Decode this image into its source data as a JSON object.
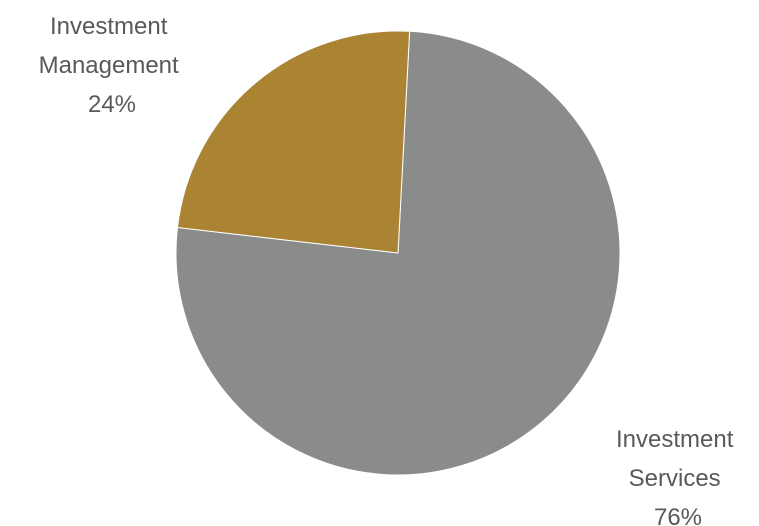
{
  "chart_data": {
    "type": "pie",
    "slices": [
      {
        "label_lines": [
          "Investment",
          "Services"
        ],
        "value": 76,
        "value_label": "76%",
        "color": "#8A8C8C"
      },
      {
        "label_lines": [
          "Investment",
          "Management"
        ],
        "value": 24,
        "value_label": "24%",
        "color": "#AB8433"
      }
    ],
    "start_angle_deg": -87,
    "direction": "clockwise",
    "legend": "none"
  }
}
